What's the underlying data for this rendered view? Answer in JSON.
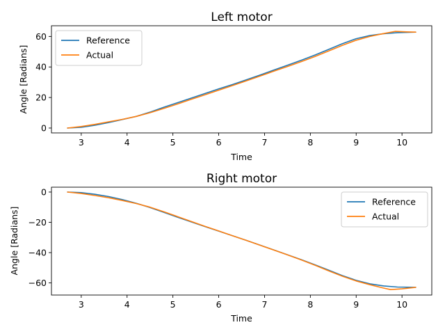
{
  "chart_data": [
    {
      "type": "line",
      "title": "Left motor",
      "xlabel": "Time",
      "ylabel": "Angle [Radians]",
      "xlim": [
        2.35,
        10.65
      ],
      "ylim": [
        -3.2,
        67.0
      ],
      "xticks": [
        3,
        4,
        5,
        6,
        7,
        8,
        9,
        10
      ],
      "yticks": [
        0,
        20,
        40,
        60
      ],
      "legend_position": "upper-left",
      "grid": false,
      "series": [
        {
          "name": "Reference",
          "color": "#1f77b4",
          "x": [
            2.7,
            3.0,
            3.3,
            3.6,
            3.9,
            4.2,
            4.5,
            4.8,
            5.1,
            5.4,
            5.7,
            6.0,
            6.3,
            6.6,
            6.9,
            7.2,
            7.5,
            7.8,
            8.1,
            8.4,
            8.7,
            9.0,
            9.3,
            9.6,
            9.9,
            10.3
          ],
          "y": [
            0,
            0.5,
            1.8,
            3.6,
            5.6,
            7.6,
            10.4,
            13.6,
            16.6,
            19.6,
            22.6,
            25.6,
            28.5,
            31.6,
            34.7,
            37.9,
            41.1,
            44.4,
            47.8,
            51.5,
            55.3,
            58.5,
            60.6,
            61.8,
            62.5,
            62.8
          ]
        },
        {
          "name": "Actual",
          "color": "#ff7f0e",
          "x": [
            2.7,
            3.0,
            3.3,
            3.6,
            3.9,
            4.2,
            4.5,
            4.8,
            5.1,
            5.4,
            5.7,
            6.0,
            6.3,
            6.6,
            6.9,
            7.2,
            7.5,
            7.8,
            8.1,
            8.4,
            8.7,
            9.0,
            9.3,
            9.6,
            9.85,
            10.1,
            10.3
          ],
          "y": [
            0,
            1.0,
            2.4,
            4.1,
            5.7,
            7.6,
            10.0,
            12.8,
            15.7,
            18.8,
            21.8,
            24.8,
            27.8,
            30.9,
            34.0,
            37.2,
            40.3,
            43.5,
            46.8,
            50.5,
            54.2,
            57.5,
            60.0,
            61.9,
            63.3,
            63.0,
            62.8
          ]
        }
      ]
    },
    {
      "type": "line",
      "title": "Right motor",
      "xlabel": "Time",
      "ylabel": "Angle [Radians]",
      "xlim": [
        2.35,
        10.65
      ],
      "ylim": [
        -68.0,
        3.2
      ],
      "xticks": [
        3,
        4,
        5,
        6,
        7,
        8,
        9,
        10
      ],
      "yticks": [
        0,
        -20,
        -40,
        -60
      ],
      "legend_position": "upper-right",
      "grid": false,
      "series": [
        {
          "name": "Reference",
          "color": "#1f77b4",
          "x": [
            2.7,
            3.0,
            3.3,
            3.6,
            3.9,
            4.2,
            4.5,
            4.8,
            5.1,
            5.4,
            5.7,
            6.0,
            6.3,
            6.6,
            6.9,
            7.2,
            7.5,
            7.8,
            8.1,
            8.4,
            8.7,
            9.0,
            9.3,
            9.6,
            9.9,
            10.3
          ],
          "y": [
            0,
            -0.4,
            -1.5,
            -3.0,
            -5.0,
            -7.4,
            -10.2,
            -13.4,
            -16.6,
            -19.7,
            -22.8,
            -25.8,
            -28.8,
            -31.9,
            -35.0,
            -38.2,
            -41.4,
            -44.6,
            -48.0,
            -51.6,
            -55.2,
            -58.3,
            -60.6,
            -62.0,
            -62.7,
            -62.9
          ]
        },
        {
          "name": "Actual",
          "color": "#ff7f0e",
          "x": [
            2.7,
            3.0,
            3.3,
            3.6,
            3.9,
            4.2,
            4.5,
            4.8,
            5.1,
            5.4,
            5.7,
            6.0,
            6.3,
            6.6,
            6.9,
            7.2,
            7.5,
            7.8,
            8.1,
            8.4,
            8.7,
            9.0,
            9.3,
            9.6,
            9.75,
            10.0,
            10.3
          ],
          "y": [
            0,
            -1.0,
            -2.3,
            -3.8,
            -5.6,
            -7.6,
            -10.0,
            -13.0,
            -16.2,
            -19.4,
            -22.6,
            -25.7,
            -28.8,
            -31.9,
            -35.1,
            -38.3,
            -41.5,
            -44.8,
            -48.3,
            -52.0,
            -55.6,
            -58.7,
            -61.2,
            -63.4,
            -64.4,
            -63.9,
            -62.9
          ]
        }
      ]
    }
  ]
}
